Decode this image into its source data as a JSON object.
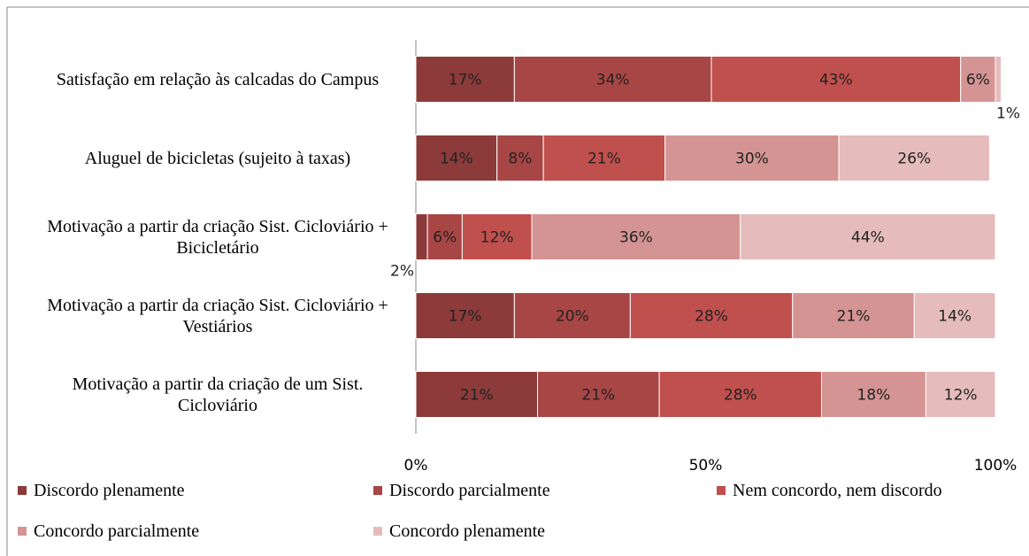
{
  "chart_data": {
    "type": "stacked_bar_horizontal",
    "categories": [
      "Satisfação em relação às calcadas do Campus",
      "Aluguel de bicicletas (sujeito à taxas)",
      "Motivação a partir da criação Sist. Cicloviário + Bicicletário",
      "Motivação a partir da criação Sist. Cicloviário + Vestiários",
      "Motivação a partir da criação de um Sist. Cicloviário"
    ],
    "series": [
      {
        "name": "Discordo plenamente",
        "color": "#8c3b3a",
        "values": [
          17,
          14,
          2,
          17,
          21
        ],
        "value_labels": [
          "17%",
          "14%",
          "2%",
          "17%",
          "21%"
        ]
      },
      {
        "name": "Discordo parcialmente",
        "color": "#a84645",
        "values": [
          34,
          8,
          6,
          20,
          21
        ],
        "value_labels": [
          "34%",
          "8%",
          "6%",
          "20%",
          "21%"
        ]
      },
      {
        "name": "Nem concordo, nem discordo",
        "color": "#c0504d",
        "values": [
          43,
          21,
          12,
          28,
          28
        ],
        "value_labels": [
          "43%",
          "21%",
          "12%",
          "28%",
          "28%"
        ]
      },
      {
        "name": "Concordo parcialmente",
        "color": "#d49493",
        "values": [
          6,
          30,
          36,
          21,
          18
        ],
        "value_labels": [
          "6%",
          "30%",
          "36%",
          "21%",
          "18%"
        ]
      },
      {
        "name": "Concordo plenamente",
        "color": "#e5bcbb",
        "values": [
          1,
          26,
          44,
          14,
          12
        ],
        "value_labels": [
          "1%",
          "26%",
          "44%",
          "14%",
          "12%"
        ]
      }
    ],
    "xlim": [
      0,
      100
    ],
    "xticks": [
      {
        "value": 0,
        "label": "0%"
      },
      {
        "value": 50,
        "label": "50%"
      },
      {
        "value": 100,
        "label": "100%"
      }
    ],
    "legend": "bottom"
  }
}
